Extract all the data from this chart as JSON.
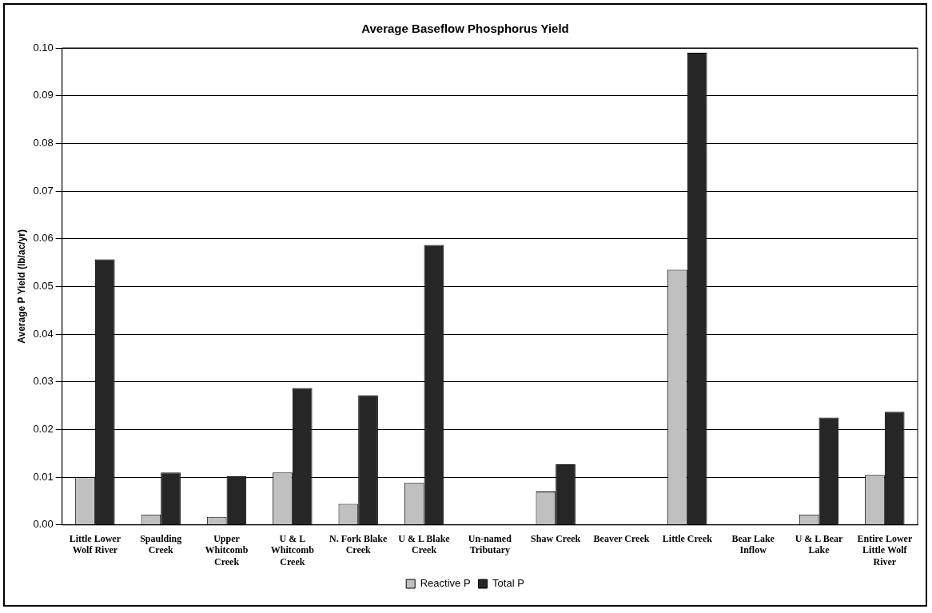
{
  "chart_data": {
    "type": "bar",
    "title": "Average Baseflow Phosphorus Yield",
    "ylabel": "Average P Yield (lb/ac/yr)",
    "categories": [
      "Little Lower Wolf River",
      "Spaulding Creek",
      "Upper Whitcomb Creek",
      "U & L Whitcomb Creek",
      "N. Fork Blake Creek",
      "U & L Blake Creek",
      "Un-named Tributary",
      "Shaw Creek",
      "Beaver Creek",
      "Little Creek",
      "Bear Lake Inflow",
      "U & L Bear Lake",
      "Entire Lower Little Wolf River"
    ],
    "series": [
      {
        "name": "Reactive P",
        "color": "#c0c0c0",
        "values": [
          0.01,
          0.0022,
          0.0017,
          0.011,
          0.0044,
          0.0088,
          0,
          0.007,
          0,
          0.0535,
          0,
          0.0022,
          0.0105
        ]
      },
      {
        "name": "Total P",
        "color": "#262626",
        "values": [
          0.0557,
          0.011,
          0.0102,
          0.0287,
          0.0272,
          0.0587,
          0,
          0.0127,
          0,
          0.099,
          0,
          0.0225,
          0.0237
        ]
      }
    ],
    "ylim": [
      0,
      0.1
    ],
    "yticks": [
      {
        "value": 0,
        "label": "0.00"
      },
      {
        "value": 0.01,
        "label": "0.01"
      },
      {
        "value": 0.02,
        "label": "0.02"
      },
      {
        "value": 0.03,
        "label": "0.03"
      },
      {
        "value": 0.04,
        "label": "0.04"
      },
      {
        "value": 0.05,
        "label": "0.05"
      },
      {
        "value": 0.06,
        "label": "0.06"
      },
      {
        "value": 0.07,
        "label": "0.07"
      },
      {
        "value": 0.08,
        "label": "0.08"
      },
      {
        "value": 0.09,
        "label": "0.09"
      },
      {
        "value": 0.1,
        "label": "0.10"
      }
    ],
    "grid": "y",
    "legend": "bottom"
  }
}
